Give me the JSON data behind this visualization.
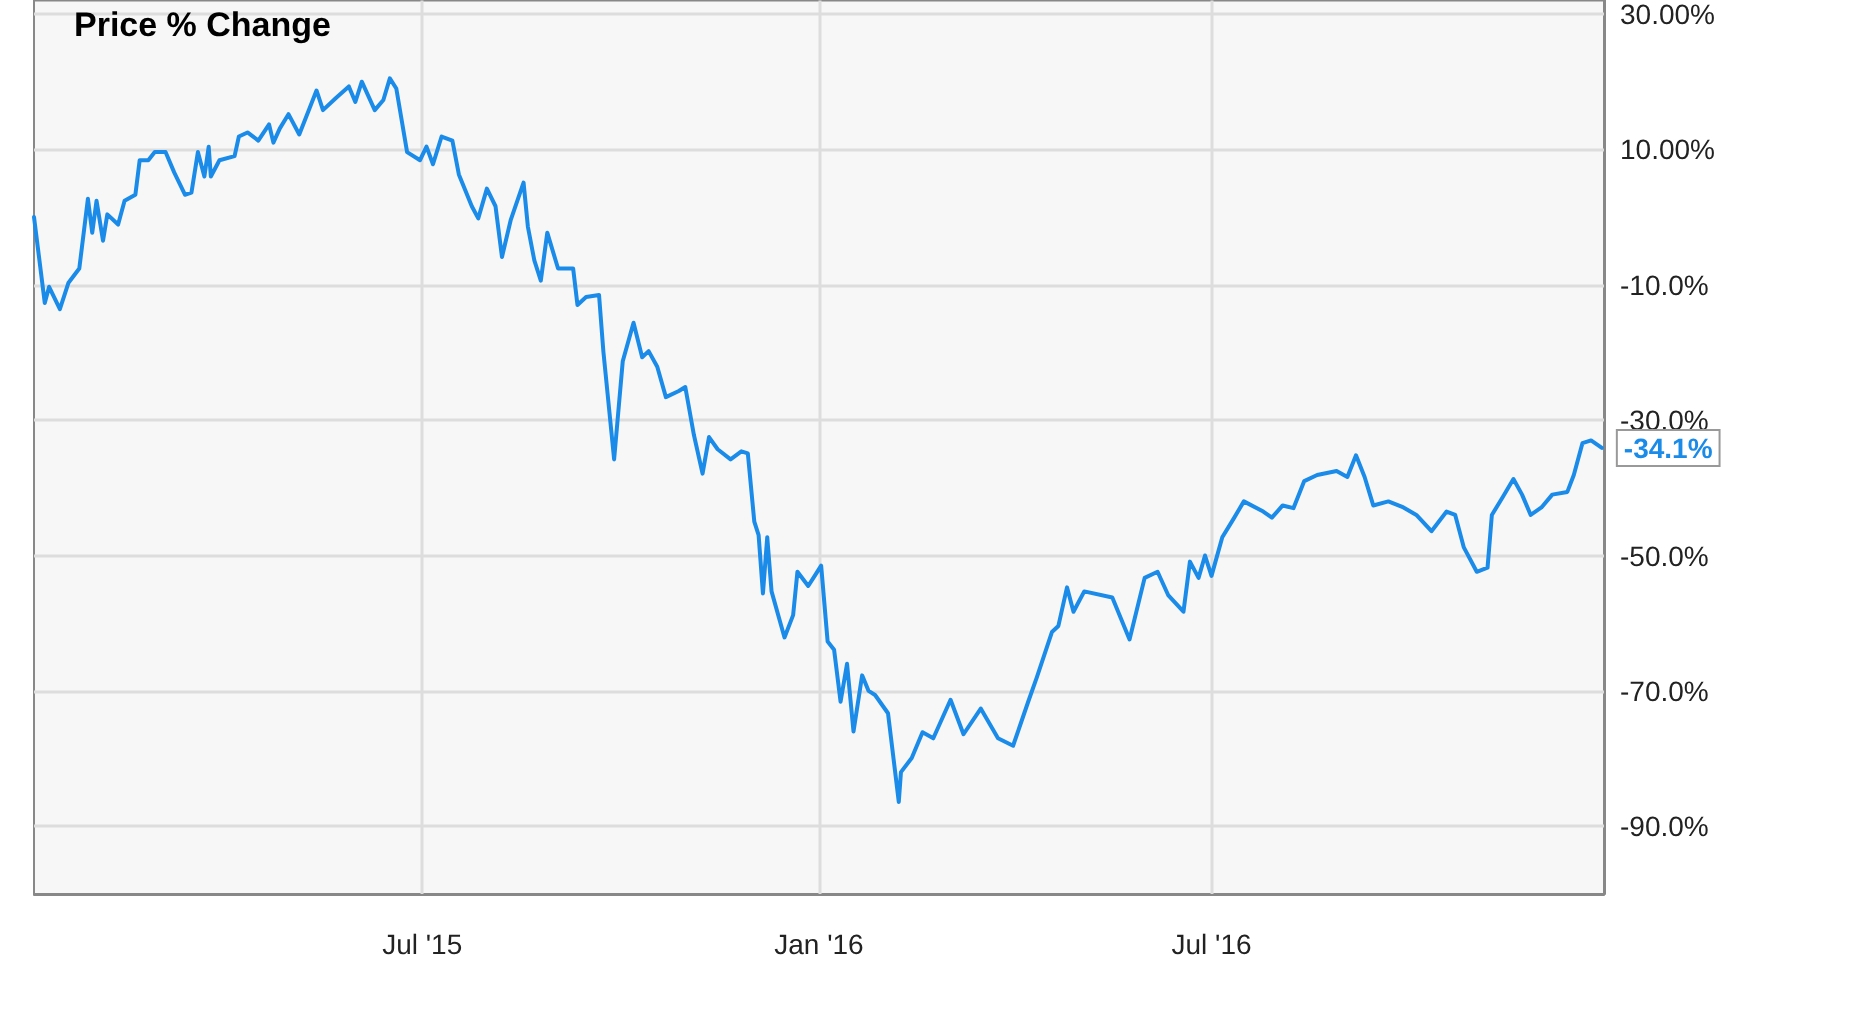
{
  "chart_data": {
    "type": "line",
    "legend": "top left",
    "grid": true,
    "marker": "none",
    "line_style": "solid",
    "xlim": [
      "2015-01-02",
      "2016-12-30"
    ],
    "xticks": [
      {
        "value": "2015-07-01",
        "label": "Jul '15"
      },
      {
        "value": "2016-01-01",
        "label": "Jan '16"
      },
      {
        "value": "2016-07-01",
        "label": "Jul '16"
      }
    ],
    "ylim": [
      -100,
      32
    ],
    "yticks": [
      {
        "value": 30,
        "label": "30.00%"
      },
      {
        "value": 10,
        "label": "10.00%"
      },
      {
        "value": -10,
        "label": "-10.0%"
      },
      {
        "value": -30,
        "label": "-30.0%"
      },
      {
        "value": -50,
        "label": "-50.0%"
      },
      {
        "value": -70,
        "label": "-70.0%"
      },
      {
        "value": -90,
        "label": "-90.0%"
      }
    ],
    "annotations": [
      {
        "text": "-34.1%",
        "x": "2016-12-29",
        "y": -34.1
      }
    ],
    "series": [
      {
        "name": "Price % Change",
        "color": "#1a8be8",
        "x": [
          "2015-01-02",
          "2015-01-07",
          "2015-01-09",
          "2015-01-14",
          "2015-01-18",
          "2015-01-23",
          "2015-01-27",
          "2015-01-29",
          "2015-01-31",
          "2015-02-03",
          "2015-02-05",
          "2015-02-10",
          "2015-02-13",
          "2015-02-18",
          "2015-02-20",
          "2015-02-24",
          "2015-02-27",
          "2015-03-04",
          "2015-03-08",
          "2015-03-13",
          "2015-03-16",
          "2015-03-19",
          "2015-03-22",
          "2015-03-24",
          "2015-03-25",
          "2015-03-29",
          "2015-04-05",
          "2015-04-07",
          "2015-04-11",
          "2015-04-16",
          "2015-04-21",
          "2015-04-23",
          "2015-04-26",
          "2015-04-30",
          "2015-05-05",
          "2015-05-13",
          "2015-05-16",
          "2015-05-22",
          "2015-05-28",
          "2015-05-31",
          "2015-06-03",
          "2015-06-09",
          "2015-06-13",
          "2015-06-16",
          "2015-06-19",
          "2015-06-24",
          "2015-06-30",
          "2015-07-03",
          "2015-07-06",
          "2015-07-10",
          "2015-07-15",
          "2015-07-18",
          "2015-07-24",
          "2015-07-27",
          "2015-07-31",
          "2015-08-04",
          "2015-08-07",
          "2015-08-11",
          "2015-08-17",
          "2015-08-19",
          "2015-08-22",
          "2015-08-25",
          "2015-08-28",
          "2015-09-02",
          "2015-09-09",
          "2015-09-11",
          "2015-09-15",
          "2015-09-21",
          "2015-09-23",
          "2015-09-28",
          "2015-10-02",
          "2015-10-07",
          "2015-10-11",
          "2015-10-14",
          "2015-10-18",
          "2015-10-22",
          "2015-10-28",
          "2015-10-31",
          "2015-11-04",
          "2015-11-08",
          "2015-11-11",
          "2015-11-15",
          "2015-11-21",
          "2015-11-26",
          "2015-11-29",
          "2015-12-02",
          "2015-12-04",
          "2015-12-06",
          "2015-12-08",
          "2015-12-10",
          "2015-12-16",
          "2015-12-20",
          "2015-12-22",
          "2015-12-27",
          "2015-12-30",
          "2016-01-02",
          "2016-01-05",
          "2016-01-08",
          "2016-01-11",
          "2016-01-14",
          "2016-01-17",
          "2016-01-21",
          "2016-01-24",
          "2016-01-27",
          "2016-02-02",
          "2016-02-07",
          "2016-02-08",
          "2016-02-13",
          "2016-02-18",
          "2016-02-23",
          "2016-03-02",
          "2016-03-08",
          "2016-03-16",
          "2016-03-24",
          "2016-03-31",
          "2016-04-07",
          "2016-04-11",
          "2016-04-18",
          "2016-04-21",
          "2016-04-25",
          "2016-04-28",
          "2016-05-03",
          "2016-05-16",
          "2016-05-24",
          "2016-05-31",
          "2016-06-06",
          "2016-06-11",
          "2016-06-18",
          "2016-06-21",
          "2016-06-25",
          "2016-06-28",
          "2016-07-01",
          "2016-07-06",
          "2016-07-11",
          "2016-07-16",
          "2016-07-25",
          "2016-07-29",
          "2016-08-03",
          "2016-08-08",
          "2016-08-13",
          "2016-08-19",
          "2016-08-28",
          "2016-09-02",
          "2016-09-06",
          "2016-09-10",
          "2016-09-14",
          "2016-09-21",
          "2016-09-28",
          "2016-10-04",
          "2016-10-11",
          "2016-10-18",
          "2016-10-22",
          "2016-10-26",
          "2016-11-01",
          "2016-11-06",
          "2016-11-08",
          "2016-11-13",
          "2016-11-18",
          "2016-11-22",
          "2016-11-26",
          "2016-12-01",
          "2016-12-06",
          "2016-12-13",
          "2016-12-16",
          "2016-12-20",
          "2016-12-24",
          "2016-12-29"
        ],
        "values": [
          0,
          -12.7,
          -10.3,
          -13.6,
          -9.7,
          -7.6,
          2.7,
          -2.3,
          2.4,
          -3.5,
          0.4,
          -1.1,
          2.4,
          3.3,
          8.4,
          8.4,
          9.6,
          9.6,
          6.6,
          3.3,
          3.6,
          9.6,
          6,
          10.4,
          6,
          8.4,
          9,
          11.9,
          12.5,
          11.3,
          13.7,
          11,
          13.1,
          15.2,
          12.2,
          18.7,
          15.8,
          17.6,
          19.3,
          17,
          20,
          15.8,
          17.3,
          20.5,
          19,
          9.6,
          8.4,
          10.4,
          7.8,
          11.9,
          11.3,
          6.3,
          1.6,
          -0.2,
          4.2,
          1.6,
          -5.9,
          -0.5,
          5.1,
          -1.4,
          -6.4,
          -9.4,
          -2.3,
          -7.6,
          -7.6,
          -13,
          -11.8,
          -11.5,
          -19.8,
          -35.8,
          -21.3,
          -15.6,
          -20.7,
          -19.8,
          -22.1,
          -26.6,
          -25.7,
          -25.1,
          -32.2,
          -37.9,
          -32.5,
          -34.3,
          -35.8,
          -34.6,
          -34.9,
          -45,
          -47,
          -55.6,
          -47.3,
          -55.3,
          -62.1,
          -58.8,
          -52.4,
          -54.5,
          -53,
          -51.5,
          -62.7,
          -63.9,
          -71.6,
          -66,
          -76,
          -67.7,
          -70,
          -70.6,
          -73.3,
          -86.4,
          -82,
          -79.9,
          -76.1,
          -77,
          -71.3,
          -76.4,
          -72.6,
          -77,
          -78.1,
          -71.6,
          -68,
          -61.3,
          -60.4,
          -54.7,
          -58.3,
          -55.3,
          -56.2,
          -62.4,
          -53.3,
          -52.4,
          -55.9,
          -58.3,
          -50.9,
          -53.3,
          -50,
          -53,
          -47.3,
          -44.7,
          -42,
          -43.5,
          -44.4,
          -42.6,
          -43,
          -39,
          -38.1,
          -37.5,
          -38.4,
          -35.2,
          -38.4,
          -42.6,
          -42,
          -42.9,
          -44,
          -46.4,
          -43.5,
          -44,
          -48.8,
          -52.4,
          -51.8,
          -44,
          -41.4,
          -38.7,
          -41,
          -44,
          -42.9,
          -41,
          -40.6,
          -38.1,
          -33.4,
          -33,
          -34.1
        ]
      }
    ]
  }
}
